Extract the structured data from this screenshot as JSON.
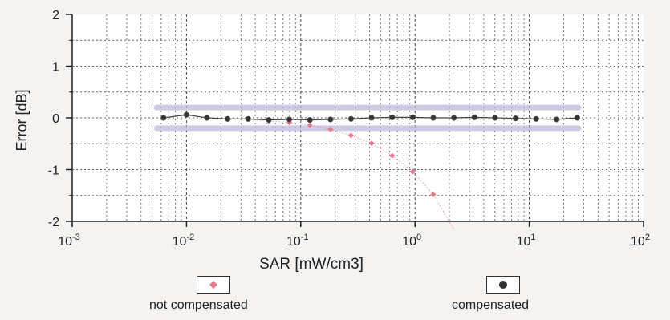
{
  "chart_data": {
    "type": "scatter",
    "xlabel": "SAR [mW/cm3]",
    "ylabel": "Error [dB]",
    "xscale": "log",
    "xlim": [
      0.001,
      100
    ],
    "ylim": [
      -2,
      2
    ],
    "grid": true,
    "legend_position": "bottom",
    "x_ticks": [
      {
        "base": "10",
        "exp": "-3"
      },
      {
        "base": "10",
        "exp": "-2"
      },
      {
        "base": "10",
        "exp": "-1"
      },
      {
        "base": "10",
        "exp": "0"
      },
      {
        "base": "10",
        "exp": "1"
      },
      {
        "base": "10",
        "exp": "2"
      }
    ],
    "y_ticks": [
      "-2",
      "-1",
      "0",
      "1",
      "2"
    ],
    "uncertainty_band": {
      "upper": 0.2,
      "lower": -0.2,
      "color": "#b8b4d8"
    },
    "series": [
      {
        "name": "not compensated",
        "color": "#e8788e",
        "marker": "diamond",
        "x": [
          0.0063,
          0.01,
          0.0151,
          0.0229,
          0.0347,
          0.0525,
          0.0794,
          0.1202,
          0.182,
          0.2754,
          0.4169,
          0.631,
          0.955,
          1.4454,
          2.1878
        ],
        "y": [
          0.0,
          0.05,
          0.0,
          -0.03,
          -0.03,
          -0.06,
          -0.09,
          -0.14,
          -0.22,
          -0.34,
          -0.49,
          -0.73,
          -1.04,
          -1.48,
          -2.15
        ]
      },
      {
        "name": "compensated",
        "color": "#333333",
        "marker": "circle",
        "x": [
          0.0063,
          0.01,
          0.0151,
          0.0229,
          0.0347,
          0.0525,
          0.0794,
          0.1202,
          0.182,
          0.2754,
          0.4169,
          0.631,
          0.955,
          1.4454,
          2.1878,
          3.3113,
          5.0119,
          7.5858,
          11.4815,
          17.378,
          26.3027
        ],
        "y": [
          0.0,
          0.06,
          0.0,
          -0.02,
          -0.02,
          -0.04,
          -0.03,
          -0.04,
          -0.03,
          -0.02,
          0.0,
          0.01,
          0.01,
          0.0,
          0.0,
          0.01,
          0.0,
          -0.01,
          -0.02,
          -0.03,
          0.0
        ]
      }
    ]
  }
}
